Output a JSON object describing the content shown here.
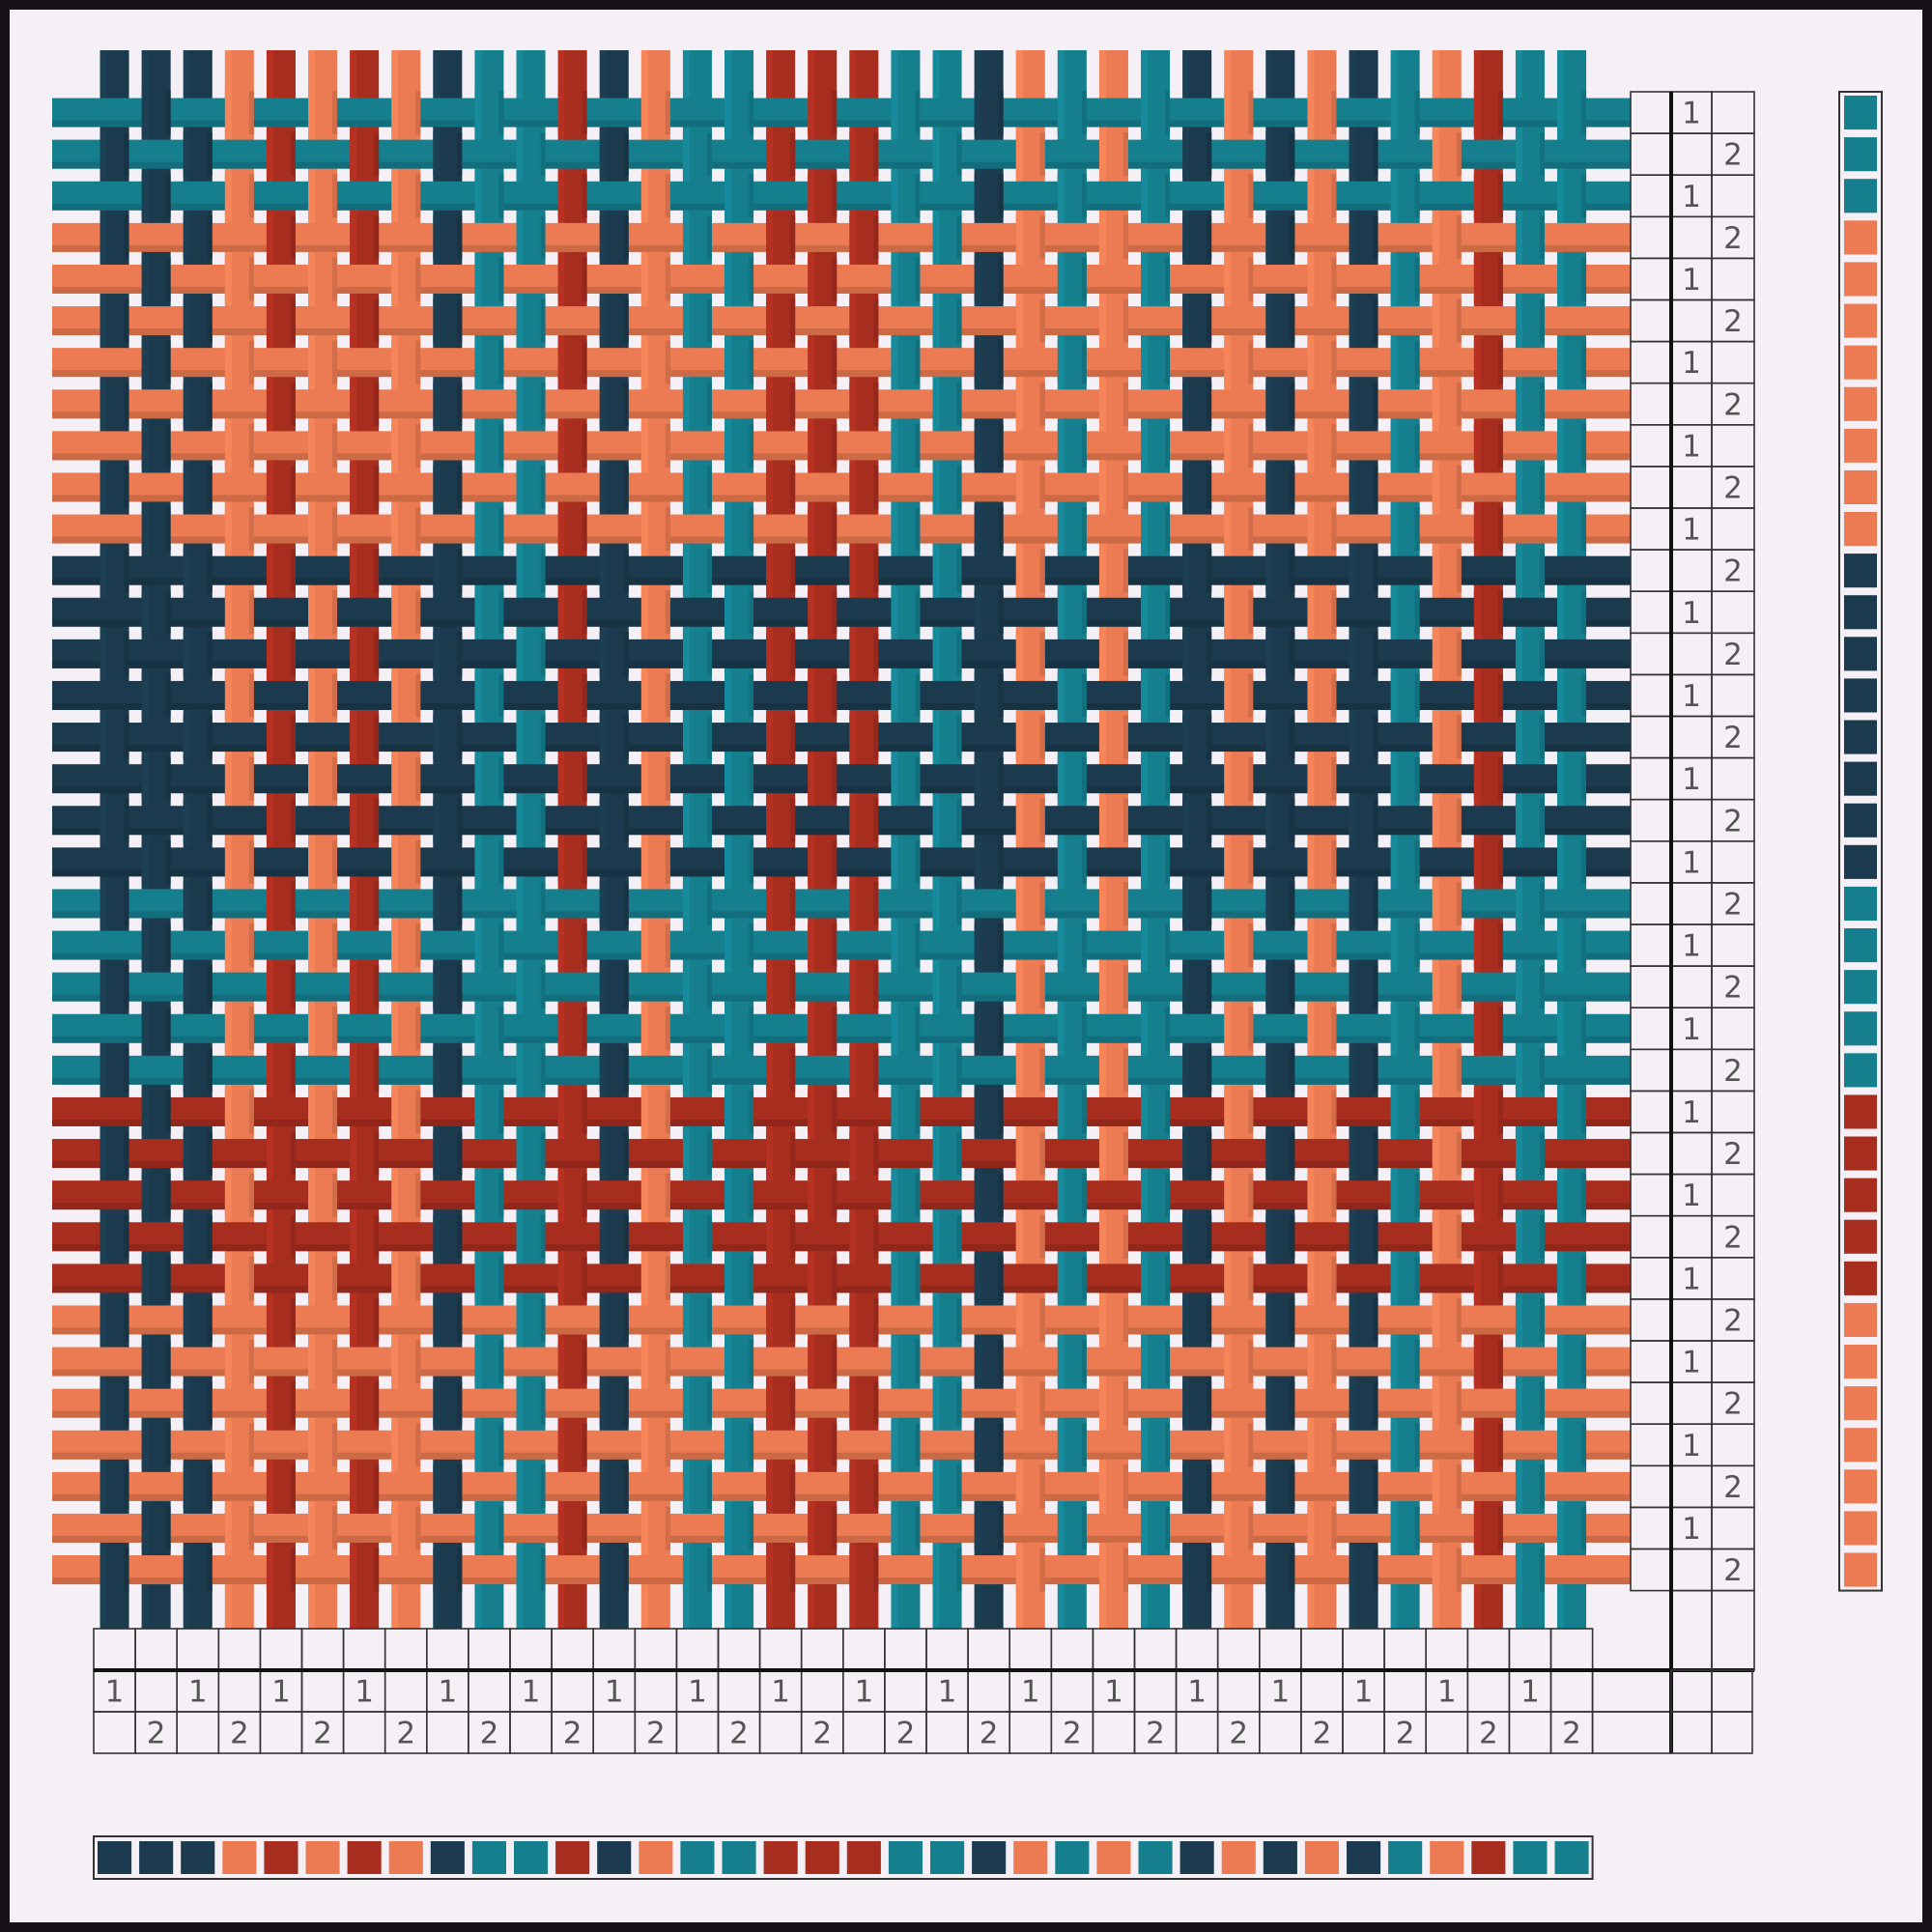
{
  "colors": {
    "dark": "#1b3a4d",
    "teal": "#157f8e",
    "coral": "#ec7a52",
    "red": "#a72d1f",
    "paper": "#f5f0f6",
    "frame": "#17111a",
    "grid": "#222222"
  },
  "warp": {
    "colors": [
      "dark",
      "dark",
      "dark",
      "coral",
      "red",
      "coral",
      "red",
      "coral",
      "dark",
      "teal",
      "teal",
      "red",
      "dark",
      "coral",
      "teal",
      "teal",
      "red",
      "red",
      "red",
      "teal",
      "teal",
      "dark",
      "coral",
      "teal",
      "coral",
      "teal",
      "dark",
      "coral",
      "dark",
      "coral",
      "dark",
      "teal",
      "coral",
      "red",
      "teal",
      "teal"
    ],
    "threading": [
      1,
      2,
      1,
      2,
      1,
      2,
      1,
      2,
      1,
      2,
      1,
      2,
      1,
      2,
      1,
      2,
      1,
      2,
      1,
      2,
      1,
      2,
      1,
      2,
      1,
      2,
      1,
      2,
      1,
      2,
      1,
      2,
      1,
      2,
      1,
      2
    ]
  },
  "weft": {
    "colors": [
      "teal",
      "teal",
      "teal",
      "coral",
      "coral",
      "coral",
      "coral",
      "coral",
      "coral",
      "coral",
      "coral",
      "dark",
      "dark",
      "dark",
      "dark",
      "dark",
      "dark",
      "dark",
      "dark",
      "teal",
      "teal",
      "teal",
      "teal",
      "teal",
      "red",
      "red",
      "red",
      "red",
      "red",
      "coral",
      "coral",
      "coral",
      "coral",
      "coral",
      "coral",
      "coral"
    ],
    "treadling": [
      1,
      2,
      1,
      2,
      1,
      2,
      1,
      2,
      1,
      2,
      1,
      2,
      1,
      2,
      1,
      2,
      1,
      2,
      1,
      2,
      1,
      2,
      1,
      2,
      1,
      2,
      1,
      2,
      1,
      2,
      1,
      2,
      1,
      2,
      1,
      2
    ]
  },
  "tieup": {
    "shafts": 2,
    "treadles": 2
  },
  "labels": {
    "one": "1",
    "two": "2"
  }
}
